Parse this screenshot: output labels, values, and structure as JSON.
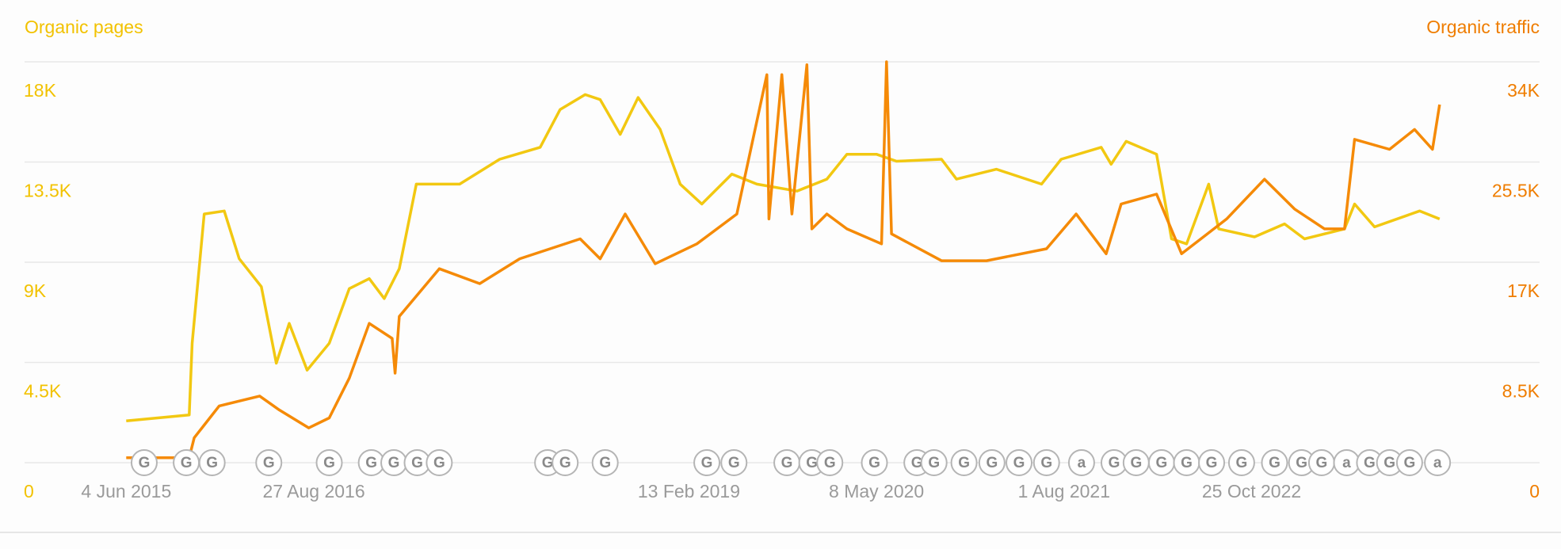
{
  "chart_data": {
    "type": "line",
    "y_label": "Organic pages",
    "y2_label": "Organic traffic",
    "xlim": [
      "2014-10-03",
      "2024-09-15"
    ],
    "xticks": [
      {
        "value": "2015-06-04",
        "label": "4 Jun 2015"
      },
      {
        "value": "2016-08-27",
        "label": "27 Aug 2016"
      },
      {
        "value": "2019-02-13",
        "label": "13 Feb 2019"
      },
      {
        "value": "2020-05-08",
        "label": "8 May 2020"
      },
      {
        "value": "2021-08-01",
        "label": "1 Aug 2021"
      },
      {
        "value": "2022-10-25",
        "label": "25 Oct 2022"
      }
    ],
    "ylim": [
      0,
      18000
    ],
    "yticks": [
      0,
      {
        "value": 4500,
        "label": "4.5K"
      },
      {
        "value": 9000,
        "label": "9K"
      },
      {
        "value": 13500,
        "label": "13.5K"
      },
      {
        "value": 18000,
        "label": "18K"
      }
    ],
    "y2lim": [
      0,
      34000
    ],
    "y2ticks": [
      0,
      {
        "value": 8500,
        "label": "8.5K"
      },
      {
        "value": 17000,
        "label": "17K"
      },
      {
        "value": 25500,
        "label": "25.5K"
      },
      {
        "value": 34000,
        "label": "34K"
      }
    ],
    "grid": true,
    "series": [
      {
        "name": "Organic pages",
        "color": "#f2c811",
        "x": [
          "2015-06-04",
          "2015-11-02",
          "2015-11-09",
          "2015-12-08",
          "2016-01-25",
          "2016-03-01",
          "2016-04-23",
          "2016-05-29",
          "2016-06-29",
          "2016-08-11",
          "2016-10-03",
          "2016-11-20",
          "2017-01-07",
          "2017-02-12",
          "2017-03-20",
          "2017-04-30",
          "2017-08-12",
          "2017-11-16",
          "2018-02-21",
          "2018-04-10",
          "2018-06-09",
          "2018-07-15",
          "2018-09-01",
          "2018-10-14",
          "2018-12-06",
          "2019-01-23",
          "2019-03-16",
          "2019-05-27",
          "2019-07-26",
          "2019-10-30",
          "2020-01-10",
          "2020-02-27",
          "2020-05-08",
          "2020-06-25",
          "2020-10-11",
          "2020-11-16",
          "2021-02-20",
          "2021-06-08",
          "2021-07-25",
          "2021-10-29",
          "2021-11-22",
          "2021-12-28",
          "2022-03-11",
          "2022-04-16",
          "2022-05-22",
          "2022-07-14",
          "2022-08-07",
          "2022-11-01",
          "2023-01-12",
          "2023-03-01",
          "2023-06-05",
          "2023-06-29",
          "2023-08-16",
          "2023-12-02",
          "2024-01-19"
        ],
        "values": [
          1876,
          2144,
          5360,
          11167,
          11300,
          9157,
          7906,
          4467,
          6254,
          4154,
          5360,
          7817,
          8264,
          7370,
          8710,
          12508,
          12508,
          13624,
          14160,
          15858,
          16528,
          16304,
          14740,
          16394,
          14964,
          12508,
          11614,
          12954,
          12508,
          12195,
          12731,
          13848,
          13848,
          13535,
          13624,
          12731,
          13177,
          12508,
          13624,
          14160,
          13400,
          14428,
          13848,
          10050,
          9827,
          12508,
          10497,
          10140,
          10720,
          10050,
          10497,
          11614,
          10586,
          11300,
          10943
        ]
      },
      {
        "name": "Organic traffic",
        "color": "#f58a07",
        "axis": "y2",
        "x": [
          "2015-06-04",
          "2015-11-02",
          "2015-11-14",
          "2016-01-13",
          "2016-04-19",
          "2016-06-05",
          "2016-08-15",
          "2016-10-03",
          "2016-11-20",
          "2017-01-07",
          "2017-03-03",
          "2017-03-10",
          "2017-03-20",
          "2017-06-24",
          "2017-09-29",
          "2018-01-03",
          "2018-05-28",
          "2018-07-15",
          "2018-09-13",
          "2018-11-24",
          "2019-03-04",
          "2019-06-08",
          "2019-08-19",
          "2019-08-24",
          "2019-09-24",
          "2019-10-18",
          "2019-11-23",
          "2019-12-05",
          "2020-01-10",
          "2020-02-27",
          "2020-05-20",
          "2020-06-01",
          "2020-06-13",
          "2020-10-11",
          "2021-01-27",
          "2021-06-20",
          "2021-08-30",
          "2021-11-10",
          "2021-12-16",
          "2022-03-11",
          "2022-05-10",
          "2022-08-26",
          "2022-11-25",
          "2023-02-05",
          "2023-04-18",
          "2023-06-05",
          "2023-06-29",
          "2023-09-21",
          "2023-11-20",
          "2024-01-02",
          "2024-01-19"
        ],
        "values": [
          422,
          422,
          2109,
          4809,
          5653,
          4472,
          2953,
          3797,
          7171,
          11812,
          10546,
          7593,
          12402,
          16452,
          15187,
          17296,
          18983,
          17296,
          21093,
          16874,
          18561,
          21093,
          32904,
          20671,
          32904,
          21093,
          33748,
          19827,
          21093,
          19827,
          18561,
          34000,
          19405,
          17127,
          17127,
          18139,
          21093,
          17718,
          21936,
          22780,
          17718,
          20671,
          24045,
          21514,
          19827,
          19827,
          27420,
          26576,
          28263,
          26576,
          30373
        ]
      }
    ],
    "annotations": [
      {
        "x": "2015-07-17",
        "label": "G"
      },
      {
        "x": "2015-10-26",
        "label": "G"
      },
      {
        "x": "2015-12-27",
        "label": "G"
      },
      {
        "x": "2016-05-11",
        "label": "G"
      },
      {
        "x": "2016-10-03",
        "label": "G"
      },
      {
        "x": "2017-01-12",
        "label": "G"
      },
      {
        "x": "2017-03-07",
        "label": "G"
      },
      {
        "x": "2017-05-02",
        "label": "G"
      },
      {
        "x": "2017-06-24",
        "label": "G"
      },
      {
        "x": "2018-03-11",
        "label": "G"
      },
      {
        "x": "2018-04-22",
        "label": "G"
      },
      {
        "x": "2018-07-27",
        "label": "G"
      },
      {
        "x": "2019-03-28",
        "label": "G"
      },
      {
        "x": "2019-06-01",
        "label": "G"
      },
      {
        "x": "2019-10-06",
        "label": "G"
      },
      {
        "x": "2019-12-05",
        "label": "G"
      },
      {
        "x": "2020-01-17",
        "label": "G"
      },
      {
        "x": "2020-05-03",
        "label": "G"
      },
      {
        "x": "2020-08-13",
        "label": "G"
      },
      {
        "x": "2020-09-23",
        "label": "G"
      },
      {
        "x": "2020-12-04",
        "label": "G"
      },
      {
        "x": "2021-02-09",
        "label": "G"
      },
      {
        "x": "2021-04-15",
        "label": "G"
      },
      {
        "x": "2021-06-20",
        "label": "G"
      },
      {
        "x": "2021-09-12",
        "label": "a"
      },
      {
        "x": "2021-11-29",
        "label": "G"
      },
      {
        "x": "2022-01-21",
        "label": "G"
      },
      {
        "x": "2022-03-23",
        "label": "G"
      },
      {
        "x": "2022-05-22",
        "label": "G"
      },
      {
        "x": "2022-07-21",
        "label": "G"
      },
      {
        "x": "2022-10-01",
        "label": "G"
      },
      {
        "x": "2022-12-19",
        "label": "G"
      },
      {
        "x": "2023-02-22",
        "label": "G"
      },
      {
        "x": "2023-04-11",
        "label": "G"
      },
      {
        "x": "2023-06-10",
        "label": "a"
      },
      {
        "x": "2023-08-04",
        "label": "G"
      },
      {
        "x": "2023-09-21",
        "label": "G"
      },
      {
        "x": "2023-11-08",
        "label": "G"
      },
      {
        "x": "2024-01-14",
        "label": "a"
      }
    ]
  }
}
